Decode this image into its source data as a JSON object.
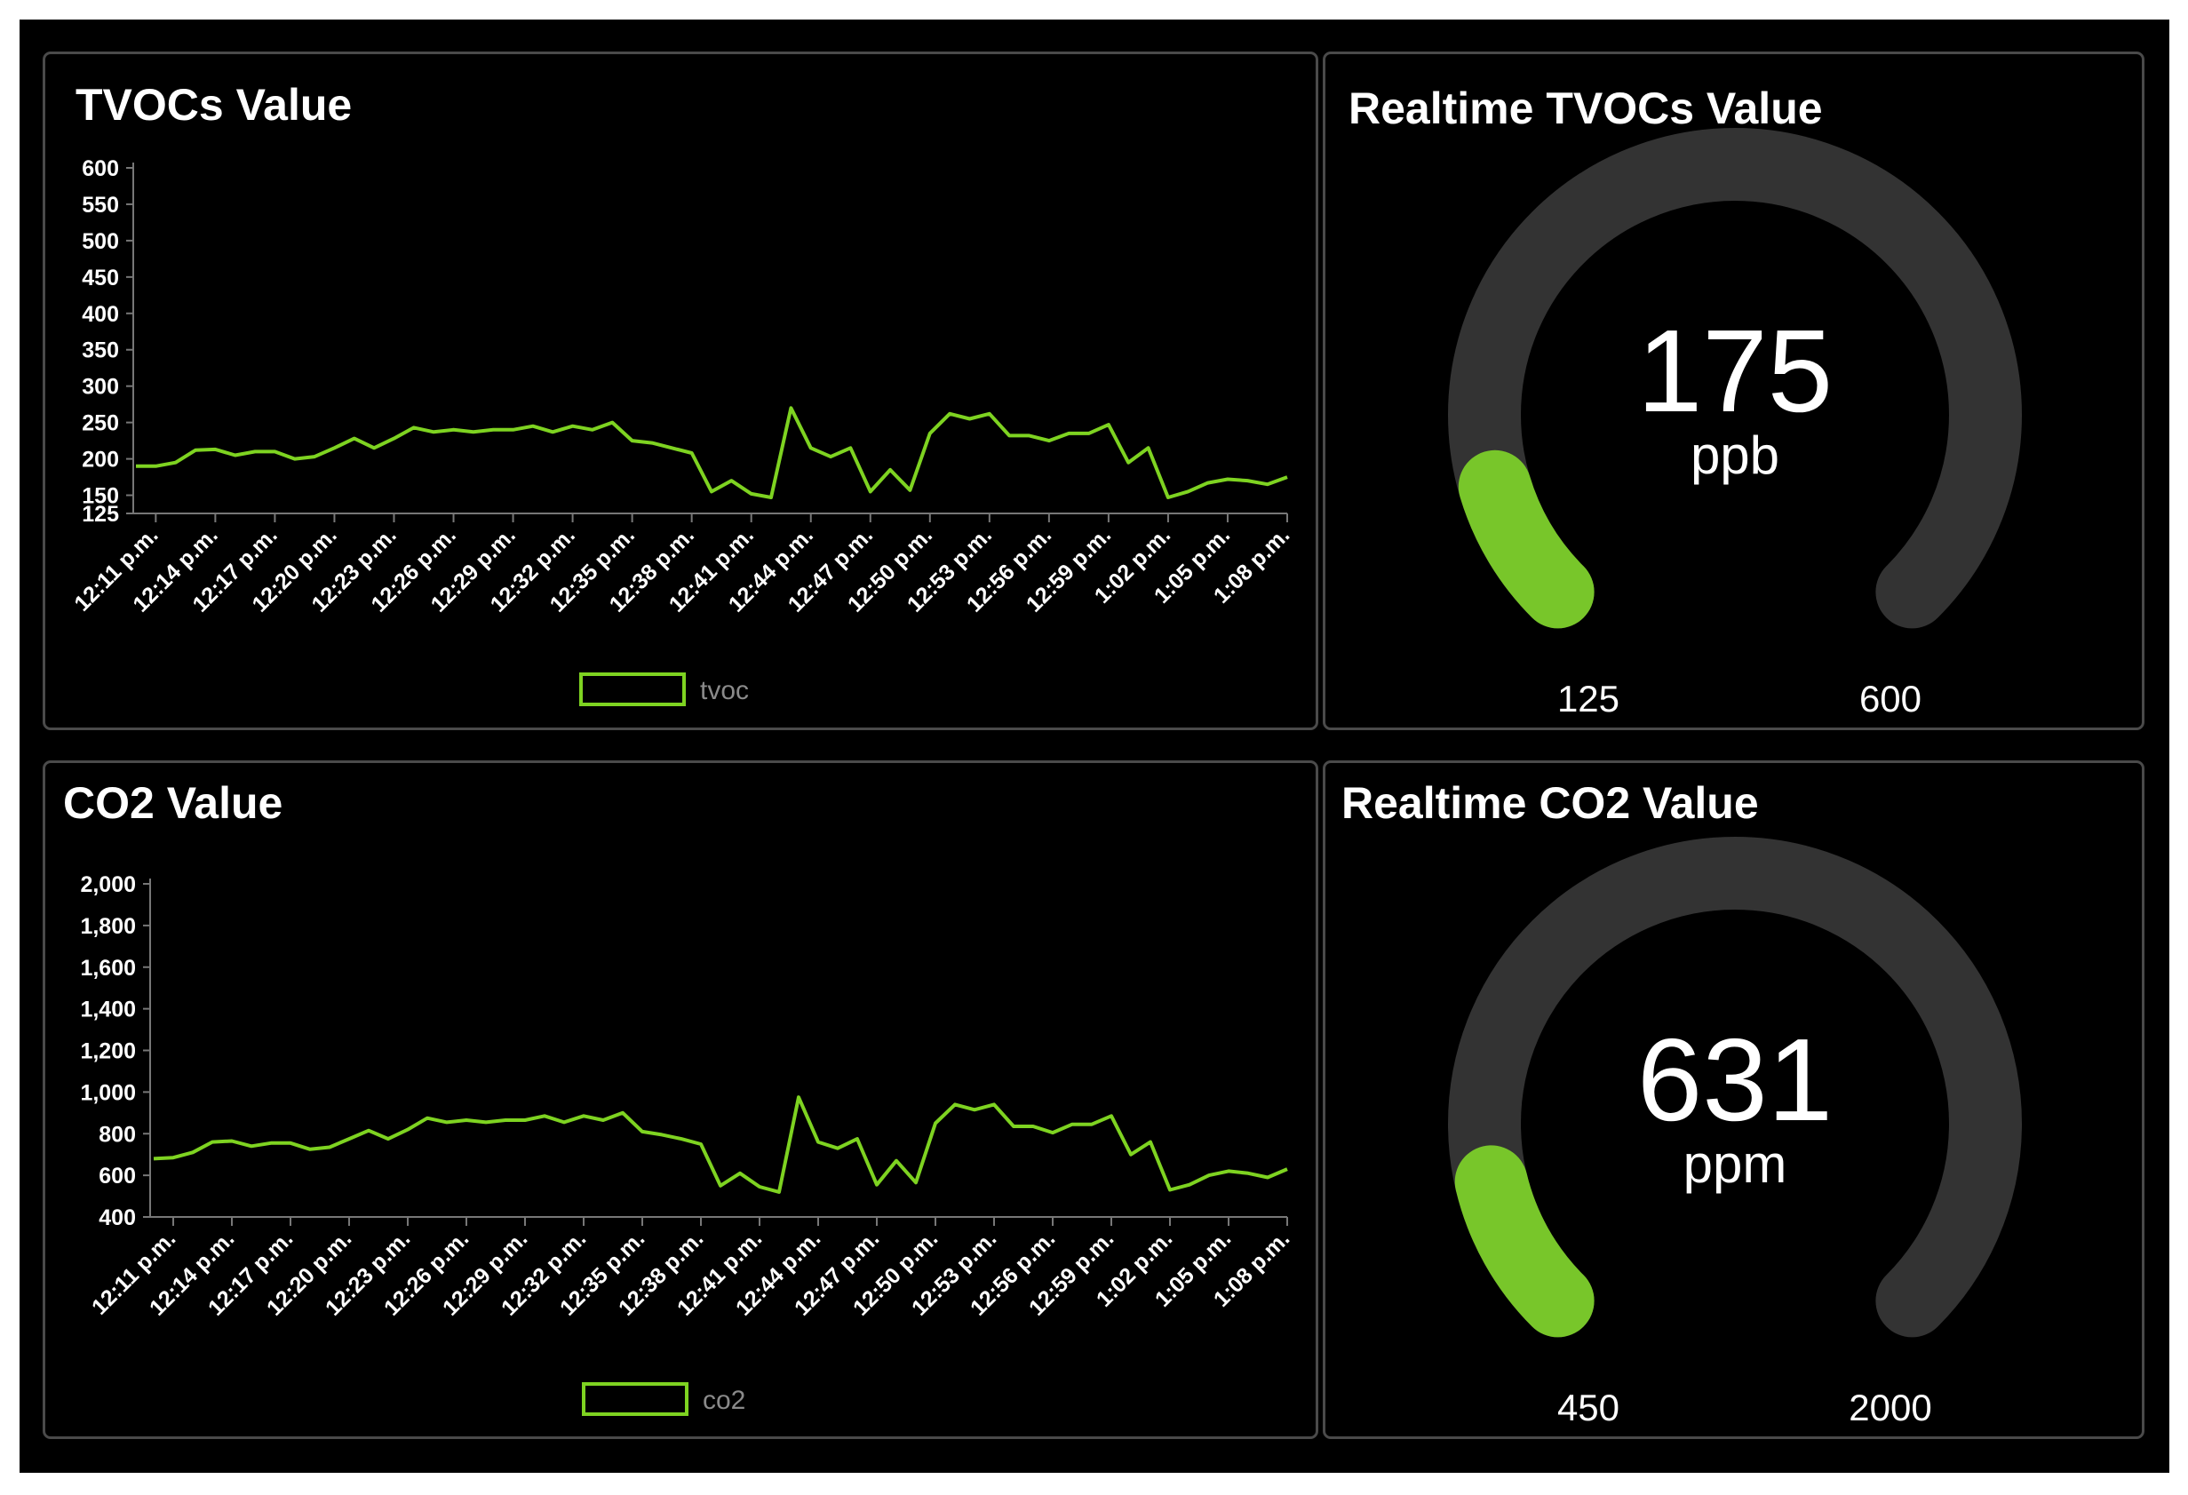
{
  "colors": {
    "background": "#000000",
    "panel_border": "#4a4a4a",
    "series": "#7ed321",
    "gauge_fill": "#78c62a",
    "gauge_track": "#333333",
    "text": "#ffffff",
    "legend_text": "#8a8a8a"
  },
  "panels": {
    "tvoc_chart": {
      "title": "TVOCs Value"
    },
    "tvoc_gauge": {
      "title": "Realtime TVOCs Value",
      "value": "175",
      "unit": "ppb",
      "min": "125",
      "max": "600",
      "fraction": 0.105
    },
    "co2_chart": {
      "title": "CO2 Value"
    },
    "co2_gauge": {
      "title": "Realtime CO2 Value",
      "value": "631",
      "unit": "ppm",
      "min": "450",
      "max": "2000",
      "fraction": 0.117
    }
  },
  "chart_data": [
    {
      "type": "line",
      "title": "TVOCs Value",
      "x_ticks": [
        "12:11 p.m.",
        "12:14 p.m.",
        "12:17 p.m.",
        "12:20 p.m.",
        "12:23 p.m.",
        "12:26 p.m.",
        "12:29 p.m.",
        "12:32 p.m.",
        "12:35 p.m.",
        "12:38 p.m.",
        "12:41 p.m.",
        "12:44 p.m.",
        "12:47 p.m.",
        "12:50 p.m.",
        "12:53 p.m.",
        "12:56 p.m.",
        "12:59 p.m.",
        "1:02 p.m.",
        "1:05 p.m.",
        "1:08 p.m."
      ],
      "y_ticks": [
        "600",
        "550",
        "500",
        "450",
        "400",
        "350",
        "300",
        "250",
        "200",
        "150",
        "125"
      ],
      "y_tick_values": [
        600,
        550,
        500,
        450,
        400,
        350,
        300,
        250,
        200,
        150,
        125
      ],
      "ylim": [
        125,
        600
      ],
      "legend": "tvoc",
      "legend_position": "bottom",
      "series": [
        {
          "name": "tvoc",
          "values": [
            190,
            190,
            195,
            212,
            213,
            205,
            210,
            210,
            200,
            203,
            215,
            228,
            215,
            228,
            243,
            237,
            240,
            237,
            240,
            240,
            245,
            237,
            245,
            240,
            250,
            225,
            222,
            215,
            208,
            155,
            170,
            152,
            147,
            270,
            215,
            203,
            215,
            155,
            185,
            157,
            235,
            262,
            255,
            262,
            232,
            232,
            225,
            235,
            235,
            247,
            195,
            215,
            147,
            155,
            167,
            172,
            170,
            165,
            175
          ]
        }
      ]
    },
    {
      "type": "line",
      "title": "CO2 Value",
      "x_ticks": [
        "12:11 p.m.",
        "12:14 p.m.",
        "12:17 p.m.",
        "12:20 p.m.",
        "12:23 p.m.",
        "12:26 p.m.",
        "12:29 p.m.",
        "12:32 p.m.",
        "12:35 p.m.",
        "12:38 p.m.",
        "12:41 p.m.",
        "12:44 p.m.",
        "12:47 p.m.",
        "12:50 p.m.",
        "12:53 p.m.",
        "12:56 p.m.",
        "12:59 p.m.",
        "1:02 p.m.",
        "1:05 p.m.",
        "1:08 p.m."
      ],
      "y_ticks": [
        "2,000",
        "1,800",
        "1,600",
        "1,400",
        "1,200",
        "1,000",
        "800",
        "600",
        "400"
      ],
      "y_tick_values": [
        2000,
        1800,
        1600,
        1400,
        1200,
        1000,
        800,
        600,
        400
      ],
      "ylim": [
        400,
        2000
      ],
      "legend": "co2",
      "legend_position": "bottom",
      "series": [
        {
          "name": "co2",
          "values": [
            680,
            685,
            710,
            760,
            765,
            740,
            755,
            755,
            725,
            735,
            775,
            815,
            775,
            820,
            875,
            855,
            865,
            855,
            865,
            865,
            885,
            855,
            885,
            865,
            900,
            810,
            795,
            775,
            750,
            550,
            610,
            545,
            520,
            975,
            760,
            730,
            775,
            555,
            670,
            565,
            850,
            940,
            915,
            940,
            835,
            835,
            805,
            845,
            845,
            885,
            700,
            760,
            530,
            555,
            600,
            620,
            610,
            590,
            630
          ]
        }
      ]
    }
  ]
}
